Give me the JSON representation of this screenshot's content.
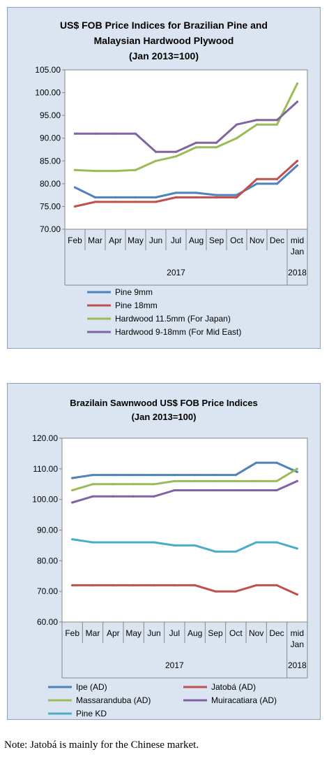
{
  "note": "Note: Jatobá is mainly for the Chinese market.",
  "chart_data": [
    {
      "type": "line",
      "title_lines": [
        "US$ FOB Price Indices for Brazilian Pine and",
        "Malaysian Hardwood Plywood",
        "(Jan 2013=100)"
      ],
      "categories": [
        "Feb",
        "Mar",
        "Apr",
        "May",
        "Jun",
        "Jul",
        "Aug",
        "Sep",
        "Oct",
        "Nov",
        "Dec",
        "mid Jan"
      ],
      "year_labels": [
        "2017",
        "2018"
      ],
      "ylim": [
        70,
        105
      ],
      "yticks": [
        "70.00",
        "75.00",
        "80.00",
        "85.00",
        "90.00",
        "95.00",
        "100.00",
        "105.00"
      ],
      "grid": false,
      "legend_position": "bottom",
      "series": [
        {
          "name": "Pine 9mm",
          "color": "#4f81bd",
          "values": [
            79.2,
            77,
            77,
            77,
            77,
            78,
            78,
            77.5,
            77.5,
            80,
            80,
            84
          ]
        },
        {
          "name": "Pine 18mm",
          "color": "#c0504d",
          "values": [
            75,
            76,
            76,
            76,
            76,
            77,
            77,
            77,
            77,
            81,
            81,
            85
          ]
        },
        {
          "name": "Hardwood 11.5mm (For Japan)",
          "color": "#9bbb59",
          "values": [
            83,
            82.8,
            82.8,
            83,
            85,
            86,
            88,
            88,
            90,
            93,
            93,
            102
          ]
        },
        {
          "name": "Hardwood 9-18mm (For Mid East)",
          "color": "#8064a2",
          "values": [
            91,
            91,
            91,
            91,
            87,
            87,
            89,
            89,
            93,
            94,
            94,
            98
          ]
        }
      ]
    },
    {
      "type": "line",
      "title_lines": [
        "Brazilain Sawnwood US$ FOB Price Indices",
        "(Jan 2013=100)"
      ],
      "categories": [
        "Feb",
        "Mar",
        "Apr",
        "May",
        "Jun",
        "Jul",
        "Aug",
        "Sep",
        "Oct",
        "Nov",
        "Dec",
        "mid Jan"
      ],
      "year_labels": [
        "2017",
        "2018"
      ],
      "ylim": [
        60,
        120
      ],
      "yticks": [
        "60.00",
        "70.00",
        "80.00",
        "90.00",
        "100.00",
        "110.00",
        "120.00"
      ],
      "grid": false,
      "legend_position": "bottom",
      "series": [
        {
          "name": "Ipe (AD)",
          "color": "#4f81bd",
          "values": [
            107,
            108,
            108,
            108,
            108,
            108,
            108,
            108,
            108,
            112,
            112,
            109
          ]
        },
        {
          "name": "Jatobá (AD)",
          "color": "#c0504d",
          "values": [
            72,
            72,
            72,
            72,
            72,
            72,
            72,
            70,
            70,
            72,
            72,
            69
          ]
        },
        {
          "name": "Massaranduba (AD)",
          "color": "#9bbb59",
          "values": [
            103,
            105,
            105,
            105,
            105,
            106,
            106,
            106,
            106,
            106,
            106,
            110
          ]
        },
        {
          "name": "Muiracatiara (AD)",
          "color": "#8064a2",
          "values": [
            99,
            101,
            101,
            101,
            101,
            103,
            103,
            103,
            103,
            103,
            103,
            106
          ]
        },
        {
          "name": "Pine KD",
          "color": "#4bacc6",
          "values": [
            87,
            86,
            86,
            86,
            86,
            85,
            85,
            83,
            83,
            86,
            86,
            84
          ]
        }
      ]
    }
  ]
}
